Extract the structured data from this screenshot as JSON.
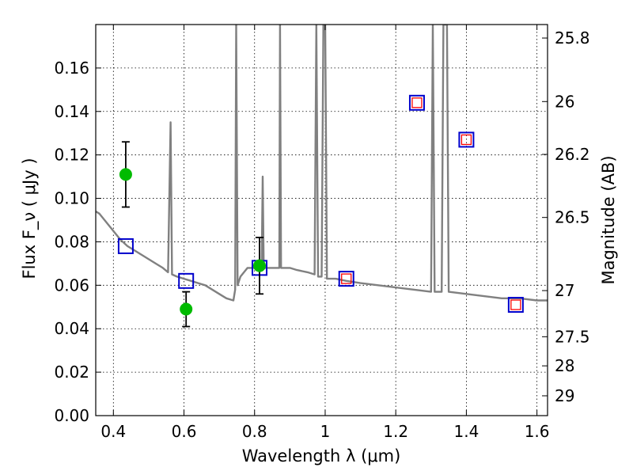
{
  "chart_data": {
    "type": "scatter",
    "xlabel": "Wavelength  λ (μm)",
    "ylabel": "Flux  F_ν  ( μJy )",
    "ylabel_right": "Magnitude (AB)",
    "xlim": [
      0.35,
      1.63
    ],
    "ylim": [
      0.0,
      0.18
    ],
    "grid": true,
    "x_ticks": [
      {
        "value": 0.4,
        "label": "0.4"
      },
      {
        "value": 0.6,
        "label": "0.6"
      },
      {
        "value": 0.8,
        "label": "0.8"
      },
      {
        "value": 1.0,
        "label": "1"
      },
      {
        "value": 1.2,
        "label": "1.2"
      },
      {
        "value": 1.4,
        "label": "1.4"
      },
      {
        "value": 1.6,
        "label": "1.6"
      }
    ],
    "y_ticks": [
      {
        "value": 0.0,
        "label": "0.00"
      },
      {
        "value": 0.02,
        "label": "0.02"
      },
      {
        "value": 0.04,
        "label": "0.04"
      },
      {
        "value": 0.06,
        "label": "0.06"
      },
      {
        "value": 0.08,
        "label": "0.08"
      },
      {
        "value": 0.1,
        "label": "0.10"
      },
      {
        "value": 0.12,
        "label": "0.12"
      },
      {
        "value": 0.14,
        "label": "0.14"
      },
      {
        "value": 0.16,
        "label": "0.16"
      }
    ],
    "mag_ticks": [
      {
        "value": 25.8,
        "label": "25.8"
      },
      {
        "value": 26.0,
        "label": "26"
      },
      {
        "value": 26.2,
        "label": "26.2"
      },
      {
        "value": 26.5,
        "label": "26.5"
      },
      {
        "value": 27.0,
        "label": "27"
      },
      {
        "value": 27.5,
        "label": "27.5"
      },
      {
        "value": 28.0,
        "label": "28"
      },
      {
        "value": 29.0,
        "label": "29"
      }
    ],
    "series": [
      {
        "kind": "model_spectrum",
        "color": "#808080",
        "points": [
          [
            0.35,
            0.094
          ],
          [
            0.36,
            0.093
          ],
          [
            0.38,
            0.089
          ],
          [
            0.4,
            0.085
          ],
          [
            0.42,
            0.081
          ],
          [
            0.44,
            0.078
          ],
          [
            0.46,
            0.076
          ],
          [
            0.48,
            0.074
          ],
          [
            0.5,
            0.072
          ],
          [
            0.52,
            0.07
          ],
          [
            0.54,
            0.068
          ],
          [
            0.555,
            0.066
          ],
          [
            0.562,
            0.135
          ],
          [
            0.566,
            0.065
          ],
          [
            0.58,
            0.064
          ],
          [
            0.6,
            0.063
          ],
          [
            0.62,
            0.062
          ],
          [
            0.64,
            0.061
          ],
          [
            0.66,
            0.06
          ],
          [
            0.68,
            0.058
          ],
          [
            0.7,
            0.056
          ],
          [
            0.72,
            0.054
          ],
          [
            0.74,
            0.053
          ],
          [
            0.745,
            0.058
          ],
          [
            0.748,
            0.18
          ],
          [
            0.752,
            0.06
          ],
          [
            0.76,
            0.064
          ],
          [
            0.78,
            0.068
          ],
          [
            0.8,
            0.068
          ],
          [
            0.82,
            0.068
          ],
          [
            0.823,
            0.11
          ],
          [
            0.826,
            0.068
          ],
          [
            0.84,
            0.068
          ],
          [
            0.86,
            0.068
          ],
          [
            0.87,
            0.068
          ],
          [
            0.872,
            0.18
          ],
          [
            0.875,
            0.068
          ],
          [
            0.9,
            0.068
          ],
          [
            0.92,
            0.067
          ],
          [
            0.95,
            0.066
          ],
          [
            0.97,
            0.065
          ],
          [
            0.975,
            0.18
          ],
          [
            0.98,
            0.064
          ],
          [
            0.99,
            0.064
          ],
          [
            0.995,
            0.18
          ],
          [
            1.0,
            0.18
          ],
          [
            1.005,
            0.063
          ],
          [
            1.03,
            0.063
          ],
          [
            1.06,
            0.062
          ],
          [
            1.1,
            0.061
          ],
          [
            1.15,
            0.06
          ],
          [
            1.2,
            0.059
          ],
          [
            1.25,
            0.058
          ],
          [
            1.3,
            0.057
          ],
          [
            1.305,
            0.18
          ],
          [
            1.31,
            0.057
          ],
          [
            1.33,
            0.057
          ],
          [
            1.335,
            0.18
          ],
          [
            1.345,
            0.18
          ],
          [
            1.35,
            0.057
          ],
          [
            1.4,
            0.056
          ],
          [
            1.45,
            0.055
          ],
          [
            1.5,
            0.054
          ],
          [
            1.55,
            0.054
          ],
          [
            1.6,
            0.053
          ],
          [
            1.63,
            0.053
          ]
        ]
      },
      {
        "kind": "observed_photometry",
        "color": "#00bb00",
        "points": [
          {
            "x": 0.435,
            "y": 0.111,
            "yerr": 0.015
          },
          {
            "x": 0.606,
            "y": 0.049,
            "yerr": 0.008
          },
          {
            "x": 0.814,
            "y": 0.069,
            "yerr": 0.013
          }
        ]
      },
      {
        "kind": "model_photometry",
        "color": "#0000cc",
        "points": [
          {
            "x": 0.435,
            "y": 0.078
          },
          {
            "x": 0.606,
            "y": 0.062
          },
          {
            "x": 0.814,
            "y": 0.068
          },
          {
            "x": 1.06,
            "y": 0.063
          },
          {
            "x": 1.26,
            "y": 0.144
          },
          {
            "x": 1.4,
            "y": 0.127
          },
          {
            "x": 1.54,
            "y": 0.051
          }
        ]
      },
      {
        "kind": "model_photometry_inner",
        "color": "#ff0000",
        "points": [
          {
            "x": 1.06,
            "y": 0.063
          },
          {
            "x": 1.26,
            "y": 0.144
          },
          {
            "x": 1.4,
            "y": 0.127
          },
          {
            "x": 1.54,
            "y": 0.051
          }
        ]
      }
    ]
  }
}
